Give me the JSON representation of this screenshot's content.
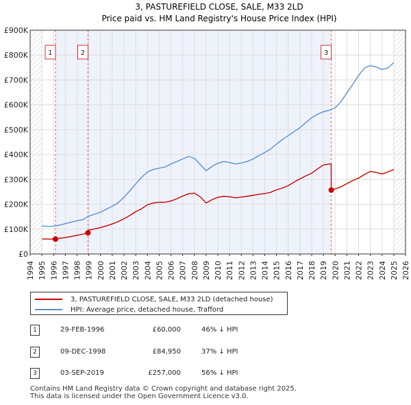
{
  "chart_data": {
    "type": "line",
    "title": "3, PASTUREFIELD CLOSE, SALE, M33 2LD",
    "subtitle": "Price paid vs. HM Land Registry's House Price Index (HPI)",
    "xlim": [
      1994,
      2026
    ],
    "ylim": [
      0,
      900000
    ],
    "x_ticks": [
      "1994",
      "1995",
      "1996",
      "1997",
      "1998",
      "1999",
      "2000",
      "2001",
      "2002",
      "2003",
      "2004",
      "2005",
      "2006",
      "2007",
      "2008",
      "2009",
      "2010",
      "2011",
      "2012",
      "2013",
      "2014",
      "2015",
      "2016",
      "2017",
      "2018",
      "2019",
      "2020",
      "2021",
      "2022",
      "2023",
      "2024",
      "2025",
      "2026"
    ],
    "y_ticks": [
      {
        "value": 0,
        "label": "£0"
      },
      {
        "value": 100000,
        "label": "£100K"
      },
      {
        "value": 200000,
        "label": "£200K"
      },
      {
        "value": 300000,
        "label": "£300K"
      },
      {
        "value": 400000,
        "label": "£400K"
      },
      {
        "value": 500000,
        "label": "£500K"
      },
      {
        "value": 600000,
        "label": "£600K"
      },
      {
        "value": 700000,
        "label": "£700K"
      },
      {
        "value": 800000,
        "label": "£800K"
      },
      {
        "value": 900000,
        "label": "£900K"
      }
    ],
    "hatched_ranges": [
      [
        1994,
        1995
      ],
      [
        2025,
        2026
      ]
    ],
    "grid": true,
    "series": [
      {
        "name": "3, PASTUREFIELD CLOSE, SALE, M33 2LD (detached house)",
        "color": "#cc0000",
        "x": [
          1995.0,
          1995.5,
          1996.16,
          1996.5,
          1997.0,
          1997.5,
          1998.0,
          1998.5,
          1998.93,
          1999.0,
          1999.5,
          2000.0,
          2000.5,
          2001.0,
          2001.5,
          2002.0,
          2002.5,
          2003.0,
          2003.5,
          2004.0,
          2004.5,
          2005.0,
          2005.5,
          2006.0,
          2006.5,
          2007.0,
          2007.5,
          2008.0,
          2008.5,
          2009.0,
          2009.5,
          2010.0,
          2010.5,
          2011.0,
          2011.5,
          2012.0,
          2012.5,
          2013.0,
          2013.5,
          2014.0,
          2014.5,
          2015.0,
          2015.5,
          2016.0,
          2016.5,
          2017.0,
          2017.5,
          2018.0,
          2018.5,
          2019.0,
          2019.5,
          2019.66,
          2019.67,
          2020.0,
          2020.5,
          2021.0,
          2021.5,
          2022.0,
          2022.5,
          2023.0,
          2023.5,
          2024.0,
          2024.5,
          2025.0
        ],
        "values": [
          61000,
          60000,
          60000,
          63000,
          66000,
          70000,
          75000,
          80000,
          84950,
          96000,
          101000,
          106000,
          113000,
          121000,
          130000,
          142000,
          155000,
          170000,
          182000,
          198000,
          205000,
          208000,
          208000,
          213000,
          222000,
          233000,
          242000,
          245000,
          230000,
          205000,
          218000,
          228000,
          232000,
          230000,
          226000,
          229000,
          232000,
          236000,
          240000,
          243000,
          248000,
          258000,
          265000,
          275000,
          289000,
          302000,
          314000,
          325000,
          342000,
          358000,
          362000,
          362000,
          257000,
          262000,
          270000,
          283000,
          295000,
          305000,
          320000,
          332000,
          328000,
          322000,
          330000,
          340000
        ]
      },
      {
        "name": "HPI: Average price, detached house, Trafford",
        "color": "#5b8fd4",
        "x": [
          1995.0,
          1995.5,
          1996.0,
          1996.5,
          1997.0,
          1997.5,
          1998.0,
          1998.5,
          1999.0,
          1999.5,
          2000.0,
          2000.5,
          2001.0,
          2001.5,
          2002.0,
          2002.5,
          2003.0,
          2003.5,
          2004.0,
          2004.5,
          2005.0,
          2005.5,
          2006.0,
          2006.5,
          2007.0,
          2007.5,
          2008.0,
          2008.5,
          2009.0,
          2009.5,
          2010.0,
          2010.5,
          2011.0,
          2011.5,
          2012.0,
          2012.5,
          2013.0,
          2013.5,
          2014.0,
          2014.5,
          2015.0,
          2015.5,
          2016.0,
          2016.5,
          2017.0,
          2017.5,
          2018.0,
          2018.5,
          2019.0,
          2019.5,
          2020.0,
          2020.5,
          2021.0,
          2021.5,
          2022.0,
          2022.5,
          2023.0,
          2023.5,
          2024.0,
          2024.5,
          2025.0
        ],
        "values": [
          113000,
          111000,
          112000,
          116000,
          122000,
          128000,
          134000,
          138000,
          152000,
          160000,
          168000,
          180000,
          192000,
          206000,
          228000,
          254000,
          282000,
          308000,
          330000,
          340000,
          345000,
          350000,
          362000,
          372000,
          382000,
          392000,
          385000,
          360000,
          335000,
          352000,
          365000,
          372000,
          368000,
          362000,
          366000,
          372000,
          382000,
          396000,
          408000,
          422000,
          442000,
          460000,
          476000,
          492000,
          508000,
          528000,
          548000,
          562000,
          572000,
          578000,
          588000,
          612000,
          648000,
          682000,
          718000,
          748000,
          758000,
          752000,
          742000,
          748000,
          770000
        ]
      }
    ],
    "markers": [
      {
        "label": "1",
        "x": 1996.16,
        "y": 60000
      },
      {
        "label": "2",
        "x": 1998.93,
        "y": 84950
      },
      {
        "label": "3",
        "x": 2019.67,
        "y": 257000
      }
    ]
  },
  "legend": {
    "property_label": "3, PASTUREFIELD CLOSE, SALE, M33 2LD (detached house)",
    "hpi_label": "HPI: Average price, detached house, Trafford",
    "property_color": "#cc0000",
    "hpi_color": "#5b8fd4"
  },
  "transactions": [
    {
      "num": "1",
      "date": "29-FEB-1996",
      "price": "£60,000",
      "hpi": "46% ↓ HPI"
    },
    {
      "num": "2",
      "date": "09-DEC-1998",
      "price": "£84,950",
      "hpi": "37% ↓ HPI"
    },
    {
      "num": "3",
      "date": "03-SEP-2019",
      "price": "£257,000",
      "hpi": "56% ↓ HPI"
    }
  ],
  "footer": {
    "line1": "Contains HM Land Registry data © Crown copyright and database right 2025.",
    "line2": "This data is licensed under the Open Government Licence v3.0."
  }
}
